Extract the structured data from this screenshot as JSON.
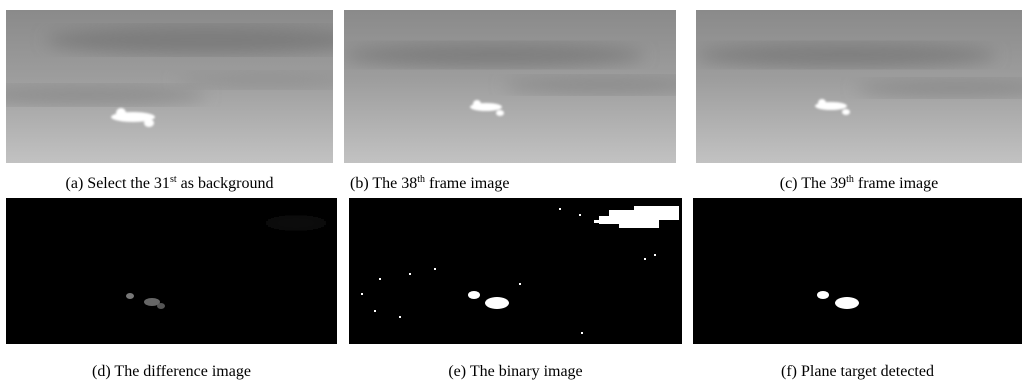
{
  "panels": [
    {
      "caption": {
        "text": "(a) Select the 31",
        "sup": "st",
        "tail": " as background"
      }
    },
    {
      "caption": {
        "text": "(b) The 38",
        "sup": "th",
        "tail": " frame image"
      }
    },
    {
      "caption": {
        "text": "(c) The 39",
        "sup": "th",
        "tail": " frame image"
      }
    },
    {
      "caption": {
        "text": "(d) The difference image"
      }
    },
    {
      "caption": {
        "text": "(e) The binary image"
      }
    },
    {
      "caption": {
        "text": "(f) Plane target detected"
      }
    }
  ]
}
